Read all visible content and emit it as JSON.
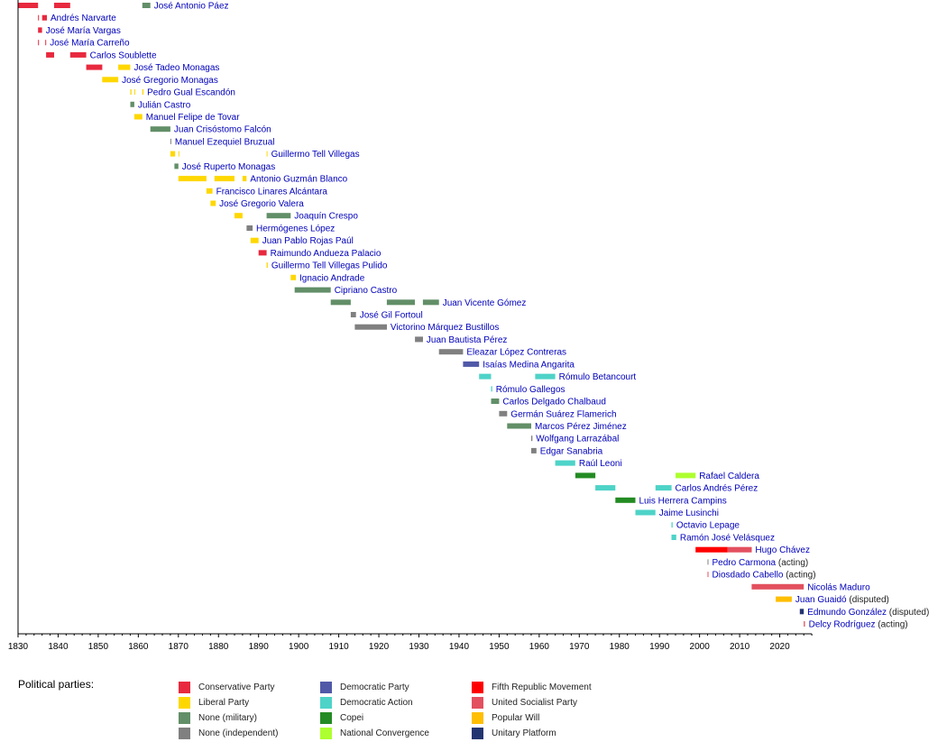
{
  "chart_data": {
    "type": "timeline",
    "title": "",
    "xlabel": "",
    "ylabel": "",
    "xlim": [
      1830,
      2028
    ],
    "x_ticks": [
      1830,
      1840,
      1850,
      1860,
      1870,
      1880,
      1890,
      1900,
      1910,
      1920,
      1930,
      1940,
      1950,
      1960,
      1970,
      1980,
      1990,
      2000,
      2010,
      2020
    ],
    "parties": {
      "conservative": {
        "name": "Conservative Party",
        "color": "#e8293e"
      },
      "liberal": {
        "name": "Liberal Party",
        "color": "#ffd700"
      },
      "military": {
        "name": "None (military)",
        "color": "#628f68"
      },
      "independent": {
        "name": "None (independent)",
        "color": "#808080"
      },
      "democratic": {
        "name": "Democratic Party",
        "color": "#5059a8"
      },
      "ad": {
        "name": "Democratic Action",
        "color": "#4ed3c8"
      },
      "copei": {
        "name": "Copei",
        "color": "#238b23"
      },
      "convergence": {
        "name": "National Convergence",
        "color": "#adff2f"
      },
      "mvr": {
        "name": "Fifth Republic Movement",
        "color": "#ff0000"
      },
      "psuv": {
        "name": "United Socialist Party",
        "color": "#e3505f"
      },
      "popular_will": {
        "name": "Popular Will",
        "color": "#ffbe00"
      },
      "unitary": {
        "name": "Unitary Platform",
        "color": "#233571"
      }
    },
    "legend_order": [
      [
        "conservative",
        "liberal",
        "military",
        "independent"
      ],
      [
        "democratic",
        "ad",
        "copei",
        "convergence"
      ],
      [
        "mvr",
        "psuv",
        "popular_will",
        "unitary"
      ]
    ],
    "legend_title": "Political parties:",
    "rows": [
      {
        "name": "José Antonio Páez",
        "note": "",
        "terms": [
          [
            1830,
            1835,
            "conservative"
          ],
          [
            1839,
            1843,
            "conservative"
          ],
          [
            1861,
            1863,
            "military"
          ]
        ]
      },
      {
        "name": "Andrés Narvarte",
        "note": "",
        "terms": [
          [
            1835,
            1835.2,
            "conservative"
          ],
          [
            1836,
            1837.2,
            "conservative"
          ]
        ]
      },
      {
        "name": "José María Vargas",
        "note": "",
        "terms": [
          [
            1835,
            1836,
            "conservative"
          ]
        ]
      },
      {
        "name": "José María Carreño",
        "note": "",
        "terms": [
          [
            1835,
            1835.15,
            "conservative"
          ],
          [
            1836.8,
            1837,
            "conservative"
          ]
        ]
      },
      {
        "name": "Carlos Soublette",
        "note": "",
        "terms": [
          [
            1837,
            1839,
            "conservative"
          ],
          [
            1843,
            1847,
            "conservative"
          ]
        ]
      },
      {
        "name": "José Tadeo Monagas",
        "note": "",
        "terms": [
          [
            1847,
            1851,
            "conservative"
          ],
          [
            1855,
            1858,
            "liberal"
          ]
        ]
      },
      {
        "name": "José Gregorio Monagas",
        "note": "",
        "terms": [
          [
            1851,
            1855,
            "liberal"
          ]
        ]
      },
      {
        "name": "Pedro Gual Escandón",
        "note": "",
        "terms": [
          [
            1858,
            1858.3,
            "liberal"
          ],
          [
            1859,
            1859.2,
            "liberal"
          ],
          [
            1861,
            1861.3,
            "liberal"
          ]
        ]
      },
      {
        "name": "Julián Castro",
        "note": "",
        "terms": [
          [
            1858,
            1859,
            "military"
          ]
        ]
      },
      {
        "name": "Manuel Felipe de Tovar",
        "note": "",
        "terms": [
          [
            1859,
            1861,
            "liberal"
          ]
        ]
      },
      {
        "name": "Juan Crisóstomo Falcón",
        "note": "",
        "terms": [
          [
            1863,
            1868,
            "military"
          ]
        ]
      },
      {
        "name": "Manuel Ezequiel Bruzual",
        "note": "",
        "terms": [
          [
            1868,
            1868.2,
            "independent"
          ]
        ]
      },
      {
        "name": "Guillermo Tell Villegas",
        "note": "",
        "terms": [
          [
            1868,
            1869.2,
            "liberal"
          ],
          [
            1870,
            1870.2,
            "liberal"
          ],
          [
            1892,
            1892.2,
            "liberal"
          ]
        ]
      },
      {
        "name": "José Ruperto Monagas",
        "note": "",
        "terms": [
          [
            1869,
            1870,
            "military"
          ]
        ]
      },
      {
        "name": "Antonio Guzmán Blanco",
        "note": "",
        "terms": [
          [
            1870,
            1877,
            "liberal"
          ],
          [
            1879,
            1884,
            "liberal"
          ],
          [
            1886,
            1887,
            "liberal"
          ]
        ]
      },
      {
        "name": "Francisco Linares Alcántara",
        "note": "",
        "terms": [
          [
            1877,
            1878.5,
            "liberal"
          ]
        ]
      },
      {
        "name": "José Gregorio Valera",
        "note": "",
        "terms": [
          [
            1878,
            1879.3,
            "liberal"
          ]
        ]
      },
      {
        "name": "Joaquín Crespo",
        "note": "",
        "terms": [
          [
            1884,
            1886,
            "liberal"
          ],
          [
            1892,
            1898,
            "military"
          ]
        ]
      },
      {
        "name": "Hermógenes López",
        "note": "",
        "terms": [
          [
            1887,
            1888.5,
            "independent"
          ]
        ]
      },
      {
        "name": "Juan Pablo Rojas Paúl",
        "note": "",
        "terms": [
          [
            1888,
            1890,
            "liberal"
          ]
        ]
      },
      {
        "name": "Raimundo Andueza Palacio",
        "note": "",
        "terms": [
          [
            1890,
            1892,
            "conservative"
          ]
        ]
      },
      {
        "name": "Guillermo Tell Villegas Pulido",
        "note": "",
        "terms": [
          [
            1892,
            1892.3,
            "liberal"
          ]
        ]
      },
      {
        "name": "Ignacio Andrade",
        "note": "",
        "terms": [
          [
            1898,
            1899.3,
            "liberal"
          ]
        ]
      },
      {
        "name": "Cipriano Castro",
        "note": "",
        "terms": [
          [
            1899,
            1908,
            "military"
          ]
        ]
      },
      {
        "name": "Juan Vicente Gómez",
        "note": "",
        "terms": [
          [
            1908,
            1913,
            "military"
          ],
          [
            1922,
            1929,
            "military"
          ],
          [
            1931,
            1935,
            "military"
          ]
        ]
      },
      {
        "name": "José Gil Fortoul",
        "note": "",
        "terms": [
          [
            1913,
            1914.3,
            "independent"
          ]
        ]
      },
      {
        "name": "Victorino Márquez Bustillos",
        "note": "",
        "terms": [
          [
            1914,
            1922,
            "independent"
          ]
        ]
      },
      {
        "name": "Juan Bautista Pérez",
        "note": "",
        "terms": [
          [
            1929,
            1931,
            "independent"
          ]
        ]
      },
      {
        "name": "Eleazar López Contreras",
        "note": "",
        "terms": [
          [
            1935,
            1941,
            "independent"
          ]
        ]
      },
      {
        "name": "Isaías Medina Angarita",
        "note": "",
        "terms": [
          [
            1941,
            1945,
            "democratic"
          ]
        ]
      },
      {
        "name": "Rómulo Betancourt",
        "note": "",
        "terms": [
          [
            1945,
            1948,
            "ad"
          ],
          [
            1959,
            1964,
            "ad"
          ]
        ]
      },
      {
        "name": "Rómulo Gallegos",
        "note": "",
        "terms": [
          [
            1948,
            1948.3,
            "ad"
          ]
        ]
      },
      {
        "name": "Carlos Delgado Chalbaud",
        "note": "",
        "terms": [
          [
            1948,
            1950,
            "military"
          ]
        ]
      },
      {
        "name": "Germán Suárez Flamerich",
        "note": "",
        "terms": [
          [
            1950,
            1952,
            "independent"
          ]
        ]
      },
      {
        "name": "Marcos Pérez Jiménez",
        "note": "",
        "terms": [
          [
            1952,
            1958,
            "military"
          ]
        ]
      },
      {
        "name": "Wolfgang Larrazábal",
        "note": "",
        "terms": [
          [
            1958,
            1958.3,
            "independent"
          ]
        ]
      },
      {
        "name": "Edgar Sanabria",
        "note": "",
        "terms": [
          [
            1958,
            1959.3,
            "independent"
          ]
        ]
      },
      {
        "name": "Raúl Leoni",
        "note": "",
        "terms": [
          [
            1964,
            1969,
            "ad"
          ]
        ]
      },
      {
        "name": "Rafael Caldera",
        "note": "",
        "terms": [
          [
            1969,
            1974,
            "copei"
          ],
          [
            1994,
            1999,
            "convergence"
          ]
        ]
      },
      {
        "name": "Carlos Andrés Pérez",
        "note": "",
        "terms": [
          [
            1974,
            1979,
            "ad"
          ],
          [
            1989,
            1993,
            "ad"
          ]
        ]
      },
      {
        "name": "Luis Herrera Campins",
        "note": "",
        "terms": [
          [
            1979,
            1984,
            "copei"
          ]
        ]
      },
      {
        "name": "Jaime Lusinchi",
        "note": "",
        "terms": [
          [
            1984,
            1989,
            "ad"
          ]
        ]
      },
      {
        "name": "Octavio Lepage",
        "note": "",
        "terms": [
          [
            1993,
            1993.3,
            "ad"
          ]
        ]
      },
      {
        "name": "Ramón José Velásquez",
        "note": "",
        "terms": [
          [
            1993,
            1994.2,
            "ad"
          ]
        ]
      },
      {
        "name": "Hugo Chávez",
        "note": "",
        "terms": [
          [
            1999,
            2007,
            "mvr"
          ],
          [
            2007,
            2013,
            "psuv"
          ]
        ]
      },
      {
        "name": "Pedro Carmona",
        "note": "(acting)",
        "terms": [
          [
            2002,
            2002.2,
            "independent"
          ]
        ]
      },
      {
        "name": "Diosdado Cabello",
        "note": "(acting)",
        "terms": [
          [
            2002,
            2002.2,
            "psuv"
          ]
        ]
      },
      {
        "name": "Nicolás Maduro",
        "note": "",
        "terms": [
          [
            2013,
            2026,
            "psuv"
          ]
        ]
      },
      {
        "name": "Juan Guaidó",
        "note": "(disputed)",
        "terms": [
          [
            2019,
            2023,
            "popular_will"
          ]
        ]
      },
      {
        "name": "Edmundo González",
        "note": "(disputed)",
        "terms": [
          [
            2025,
            2026,
            "unitary"
          ]
        ]
      },
      {
        "name": "Delcy Rodríguez",
        "note": "(acting)",
        "terms": [
          [
            2026,
            2026.3,
            "psuv"
          ]
        ]
      }
    ]
  }
}
